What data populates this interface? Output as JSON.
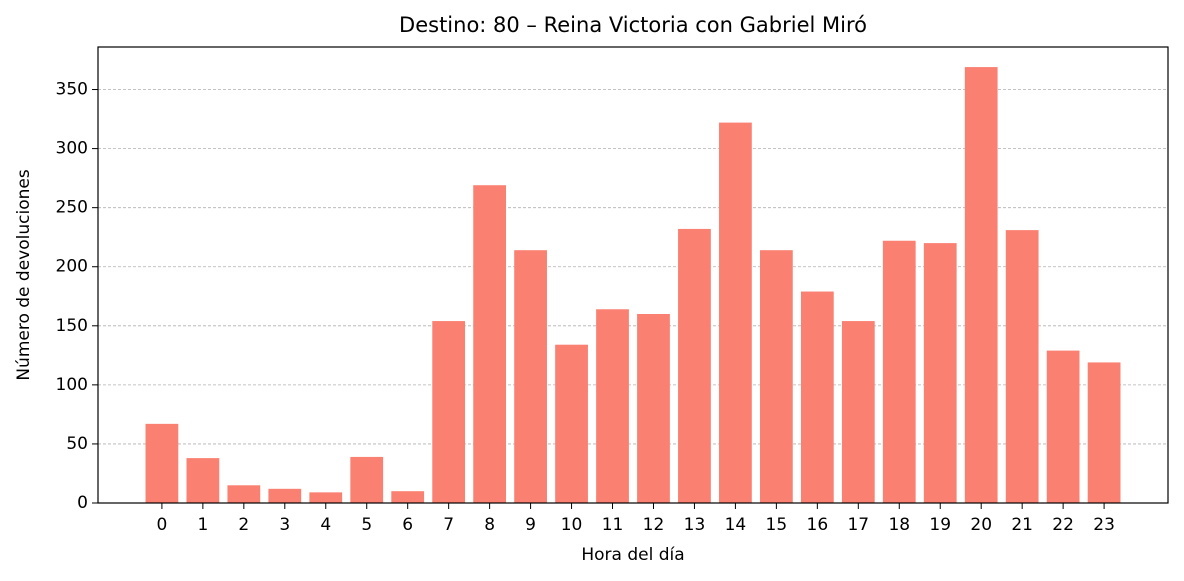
{
  "chart_data": {
    "type": "bar",
    "title": "Destino: 80 – Reina Victoria con Gabriel Miró",
    "x_label": "Hora del día",
    "y_label": "Número de devoluciones",
    "categories": [
      "0",
      "1",
      "2",
      "3",
      "4",
      "5",
      "6",
      "7",
      "8",
      "9",
      "10",
      "11",
      "12",
      "13",
      "14",
      "15",
      "16",
      "17",
      "18",
      "19",
      "20",
      "21",
      "22",
      "23"
    ],
    "values": [
      67,
      38,
      15,
      12,
      9,
      39,
      10,
      154,
      269,
      214,
      134,
      164,
      160,
      232,
      322,
      214,
      179,
      154,
      222,
      220,
      369,
      231,
      129,
      119
    ],
    "color": "#fa8072",
    "ylim": [
      0,
      386
    ],
    "yticks": [
      0,
      50,
      100,
      150,
      200,
      250,
      300,
      350
    ],
    "grid": true
  }
}
